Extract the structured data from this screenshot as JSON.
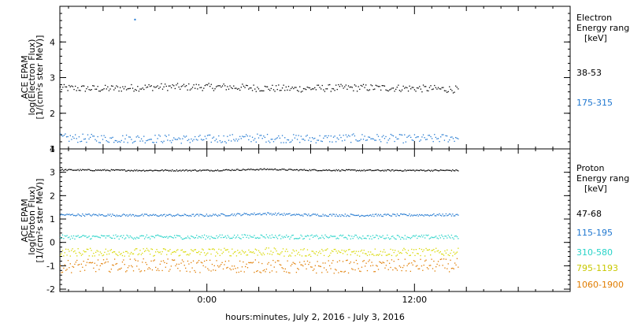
{
  "chart_data": [
    {
      "type": "scatter",
      "panel": "electron",
      "ylabel_lines": [
        "ACE EPAM",
        "log(Electron Flux)",
        "[1/(cm²s ster MeV)]"
      ],
      "ylim": [
        1,
        5
      ],
      "yticks": [
        1,
        2,
        3,
        4
      ],
      "legend_title": [
        "Electron",
        "Energy range",
        "[keV]"
      ],
      "series": [
        {
          "name": "38-53",
          "color": "#000000",
          "x": [
            -8.5,
            -6,
            -3,
            -1,
            1,
            3,
            5,
            7,
            9,
            11,
            13,
            14.5
          ],
          "y": [
            2.72,
            2.7,
            2.75,
            2.75,
            2.75,
            2.72,
            2.7,
            2.72,
            2.73,
            2.72,
            2.7,
            2.68
          ]
        },
        {
          "name": "175-315",
          "color": "#1f77d0",
          "x": [
            -8.5,
            -6,
            -3,
            -1,
            1,
            3,
            5,
            7,
            9,
            11,
            13,
            14.5
          ],
          "y": [
            1.32,
            1.3,
            1.3,
            1.28,
            1.3,
            1.32,
            1.3,
            1.3,
            1.32,
            1.3,
            1.3,
            1.33
          ]
        }
      ],
      "annotations": [
        {
          "series": "175-315",
          "x": -4.2,
          "y": 4.65
        }
      ]
    },
    {
      "type": "scatter",
      "panel": "proton",
      "ylabel_lines": [
        "ACE EPAM",
        "log(Proton Flux)",
        "[1/(cm²s ster MeV)]"
      ],
      "ylim": [
        -2.1,
        4
      ],
      "yticks": [
        -2,
        -1,
        0,
        1,
        2,
        3,
        4
      ],
      "legend_title": [
        "Proton",
        "Energy range",
        "[keV]"
      ],
      "series": [
        {
          "name": "47-68",
          "color": "#000000",
          "x": [
            -8.5,
            -4,
            0,
            3.5,
            5,
            9,
            14.5
          ],
          "y": [
            3.12,
            3.1,
            3.1,
            3.15,
            3.12,
            3.1,
            3.1
          ]
        },
        {
          "name": "115-195",
          "color": "#1f77d0",
          "x": [
            -8.5,
            -4,
            0,
            3.5,
            5,
            9,
            14.5
          ],
          "y": [
            1.2,
            1.18,
            1.18,
            1.25,
            1.2,
            1.18,
            1.2
          ]
        },
        {
          "name": "310-580",
          "color": "#27d3c8",
          "x": [
            -8.5,
            -4,
            0,
            3.5,
            5,
            9,
            14.5
          ],
          "y": [
            0.25,
            0.25,
            0.25,
            0.28,
            0.25,
            0.25,
            0.25
          ]
        },
        {
          "name": "795-1193",
          "color": "#d8d800",
          "x": [
            -8.5,
            -4,
            0,
            3.5,
            5,
            9,
            14.5
          ],
          "y": [
            -0.4,
            -0.4,
            -0.4,
            -0.38,
            -0.42,
            -0.4,
            -0.4
          ]
        },
        {
          "name": "1060-1900",
          "color": "#e07c00",
          "x": [
            -8.5,
            -4,
            0,
            3.5,
            5,
            9,
            14.5
          ],
          "y": [
            -1.0,
            -0.95,
            -1.0,
            -1.0,
            -1.05,
            -1.0,
            -0.95
          ]
        }
      ]
    }
  ],
  "x_axis": {
    "xlim": [
      -8.5,
      21
    ],
    "tick_labels": [
      "0:00",
      "12:00"
    ],
    "tick_values": [
      0,
      12
    ],
    "minor_step": 1,
    "label": "hours:minutes, July  2, 2016 - July  3, 2016"
  }
}
